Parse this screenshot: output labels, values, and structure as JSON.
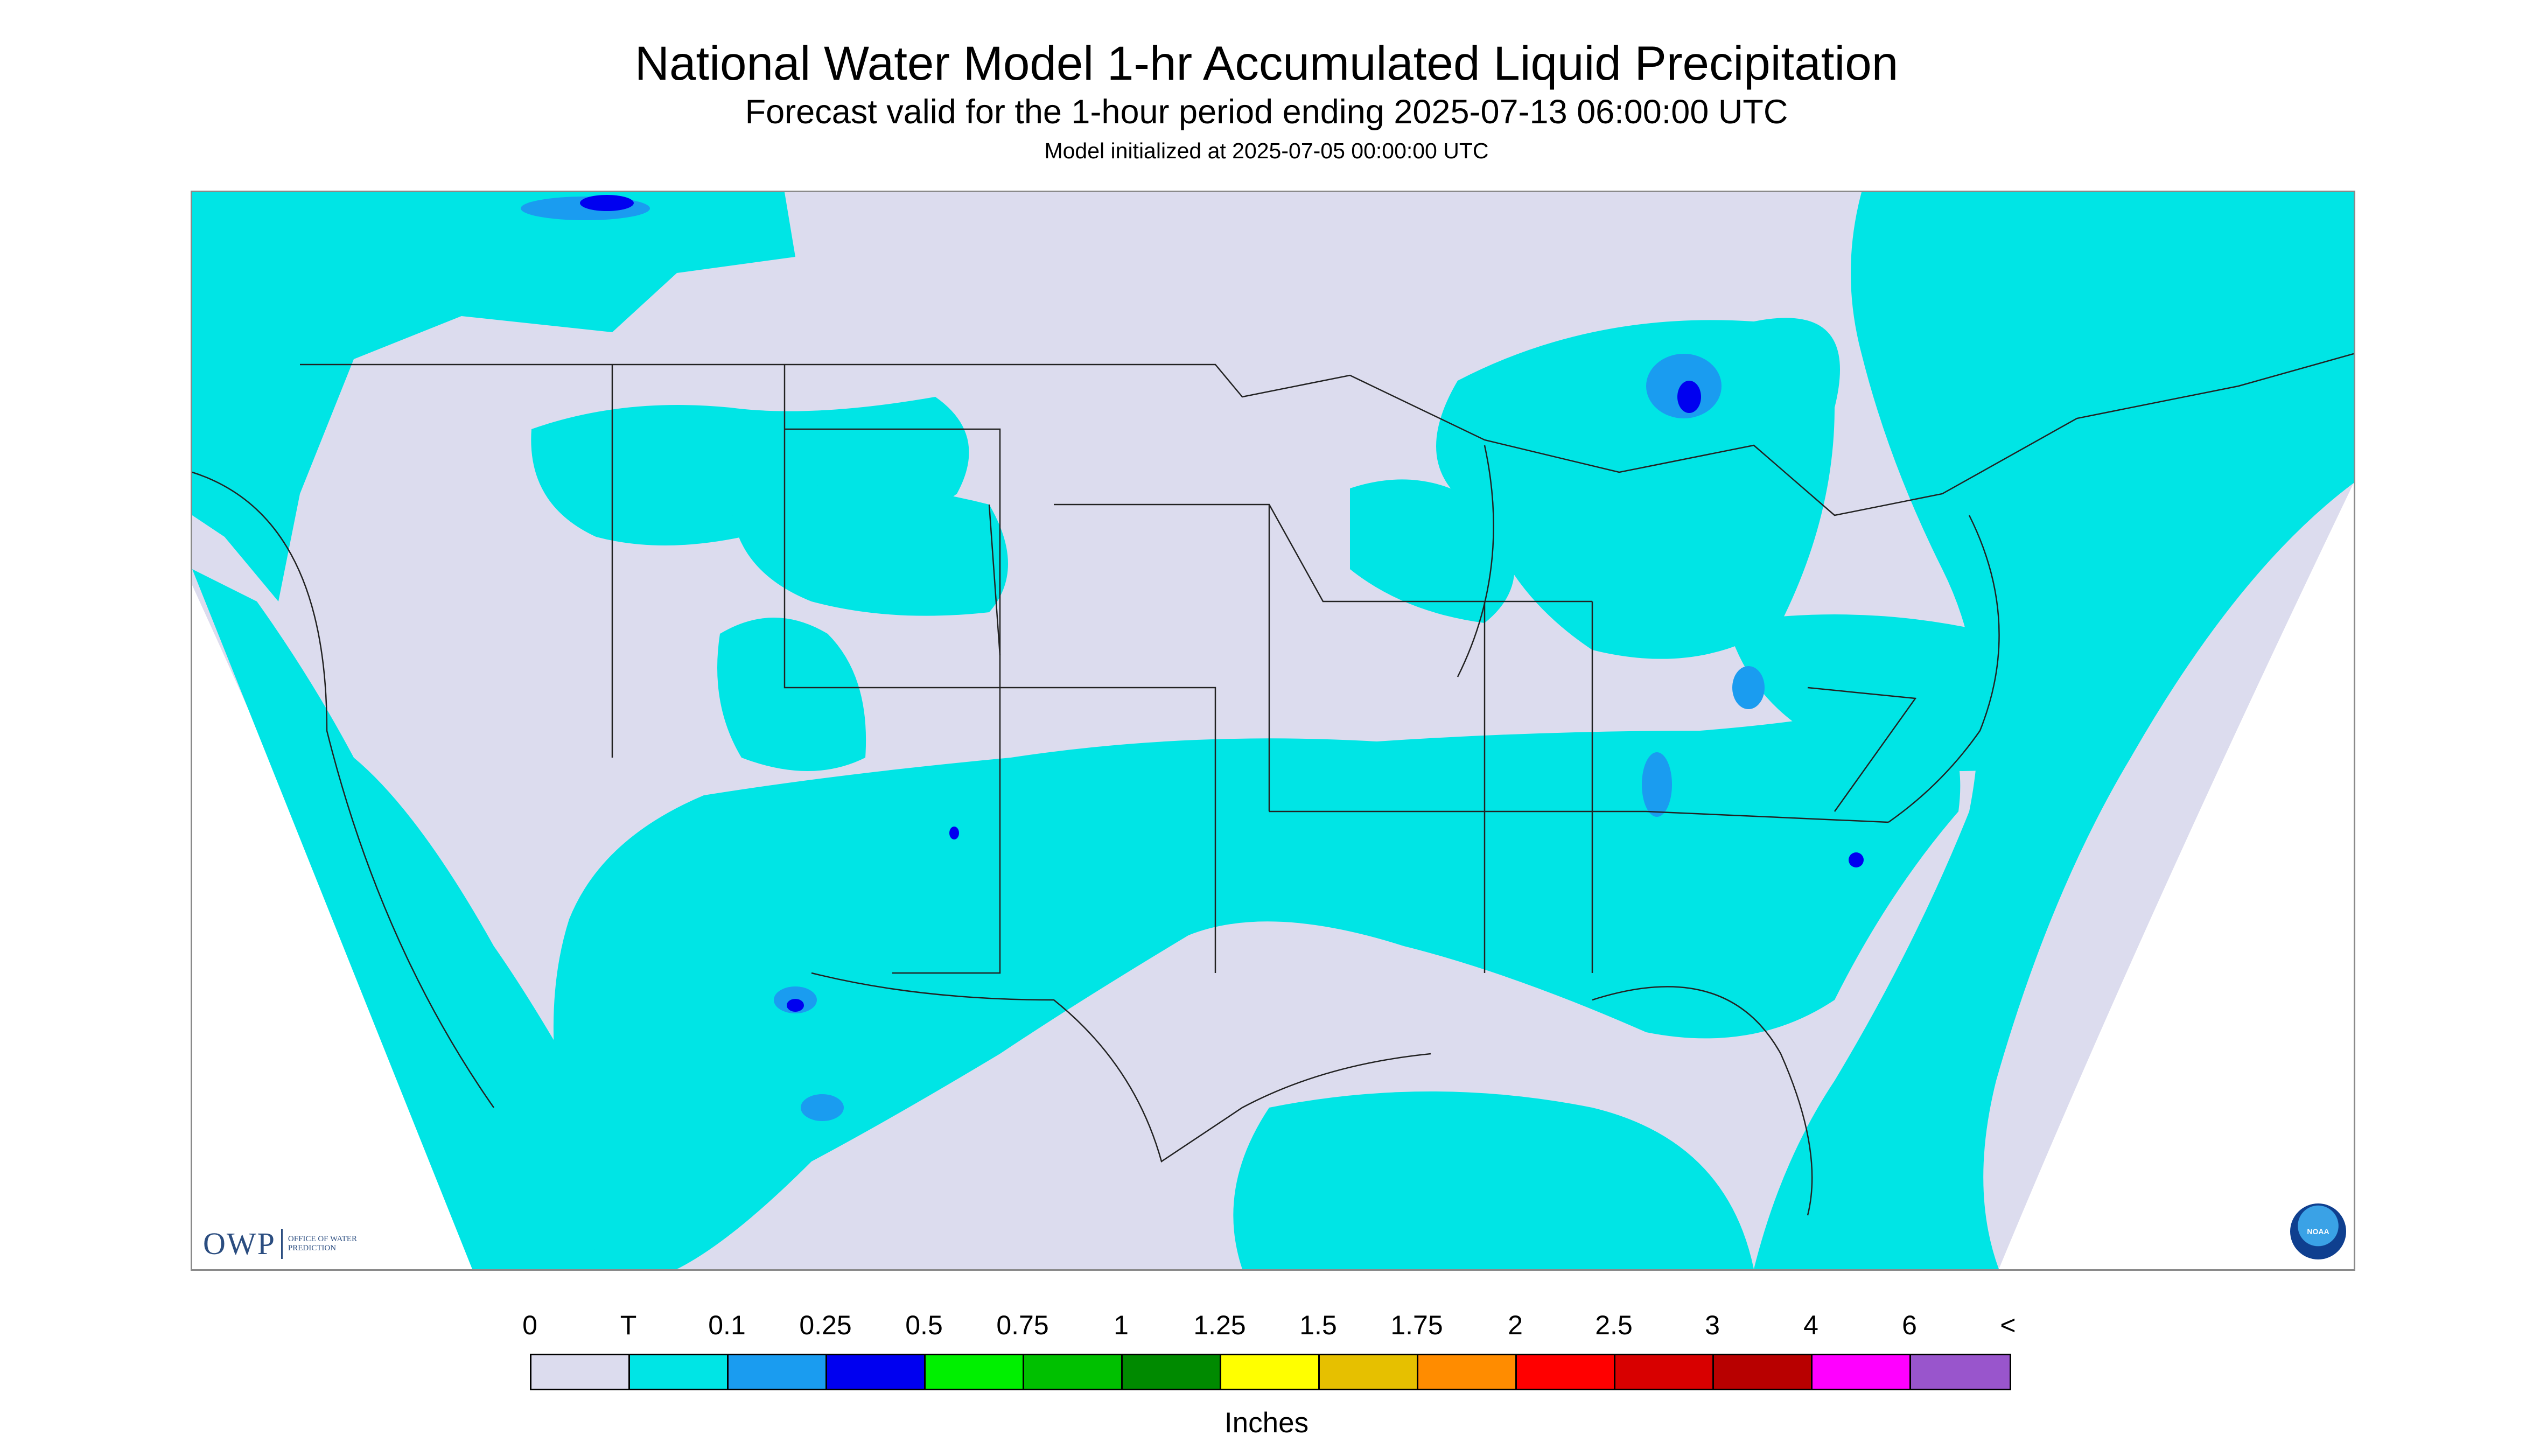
{
  "title": "National Water Model 1-hr Accumulated Liquid Precipitation",
  "subtitle": "Forecast valid for the 1-hour period ending 2025-07-13 06:00:00 UTC",
  "init_line": "Model initialized at 2025-07-05 00:00:00 UTC",
  "logos": {
    "owp_main": "OWP",
    "owp_sub": "OFFICE OF WATER PREDICTION",
    "noaa": "NOAA"
  },
  "legend": {
    "labels": [
      "0",
      "T",
      "0.1",
      "0.25",
      "0.5",
      "0.75",
      "1",
      "1.25",
      "1.5",
      "1.75",
      "2",
      "2.5",
      "3",
      "4",
      "6",
      "<"
    ],
    "colors": [
      "#dcdcee",
      "#00e5e5",
      "#1a9cf0",
      "#0000f0",
      "#00f000",
      "#00c000",
      "#008a00",
      "#ffff00",
      "#e6c000",
      "#ff8c00",
      "#ff0000",
      "#d80000",
      "#b80000",
      "#ff00ff",
      "#9955cc"
    ],
    "units": "Inches"
  },
  "map_colors": {
    "background": "#dcdcee",
    "trace": "#00e5e5",
    "light": "#1a9cf0",
    "medium": "#0000f0",
    "border": "#222222"
  }
}
